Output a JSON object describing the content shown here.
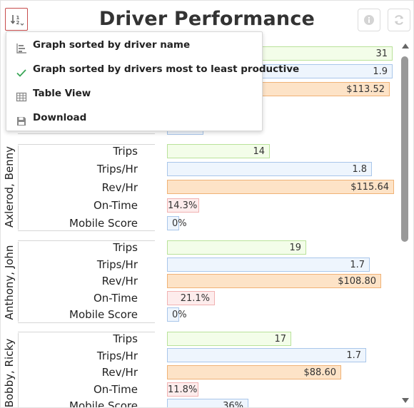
{
  "header": {
    "title": "Driver Performance"
  },
  "menu": {
    "items": [
      {
        "label": "Graph sorted by driver name",
        "icon": "bar-chart-icon",
        "selected": false
      },
      {
        "label": "Graph sorted by drivers most to least productive",
        "icon": "check-icon",
        "selected": true
      },
      {
        "label": "Table View",
        "icon": "table-icon",
        "selected": false
      },
      {
        "label": "Download",
        "icon": "save-icon",
        "selected": false
      }
    ]
  },
  "metrics": {
    "trips": "Trips",
    "trips_hr": "Trips/Hr",
    "rev_hr": "Rev/Hr",
    "on_time": "On-Time",
    "mobile": "Mobile Score"
  },
  "top_partial": {
    "trips": "31",
    "trips_hr": "1.9",
    "rev_hr": "$113.52"
  },
  "drivers": [
    {
      "name": "Axlerod, Benny",
      "trips": "14",
      "trips_hr": "1.8",
      "rev_hr": "$115.64",
      "on_time": "14.3%",
      "mobile": "0%"
    },
    {
      "name": "Anthony, John",
      "trips": "19",
      "trips_hr": "1.7",
      "rev_hr": "$108.80",
      "on_time": "21.1%",
      "mobile": "0%"
    },
    {
      "name": "Bobby, Ricky",
      "trips": "17",
      "trips_hr": "1.7",
      "rev_hr": "$88.60",
      "on_time": "11.8%",
      "mobile": "36%"
    }
  ],
  "colors": {
    "accent": "#c74c4c",
    "check": "#3aa657",
    "trips_fill": "#f3fde9",
    "trips_hr_fill": "#eef5fd",
    "rev_fill": "#fde3c7",
    "on_time_fill": "#fdecec"
  }
}
